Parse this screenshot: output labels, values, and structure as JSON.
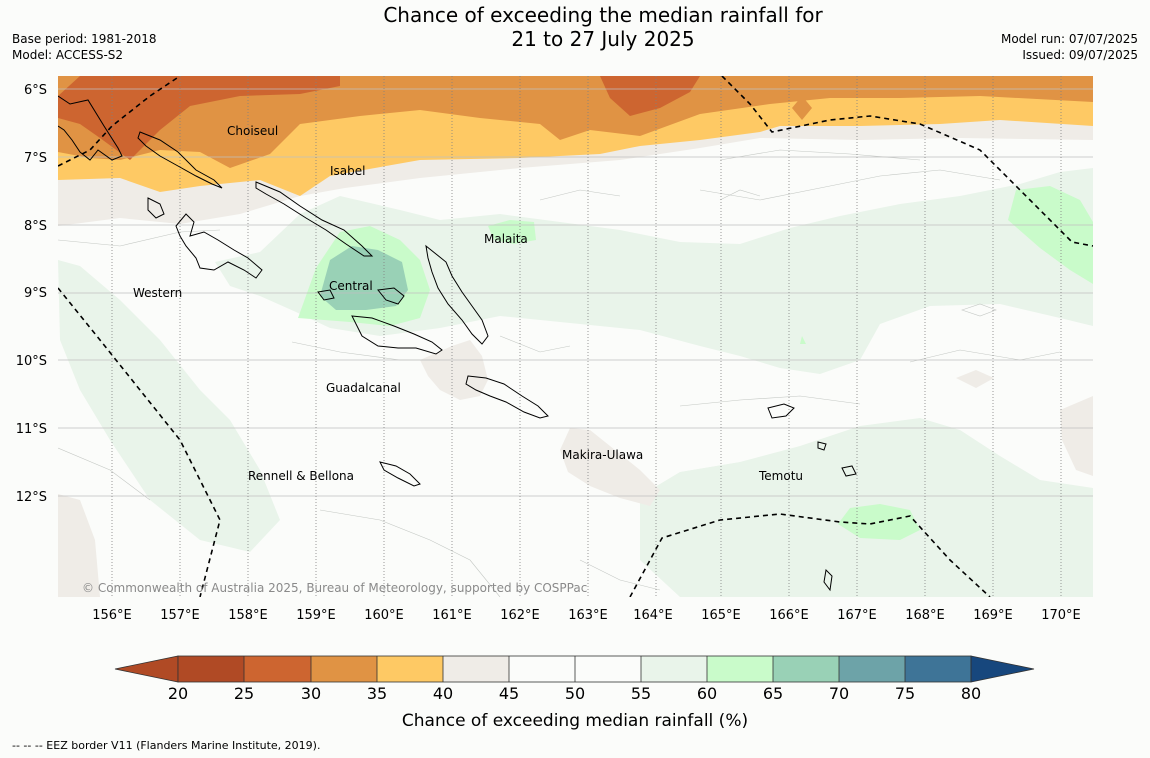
{
  "header": {
    "title_line1": "Chance of exceeding the median rainfall for",
    "title_line2": "21 to 27 July 2025",
    "base_period": "Base period: 1981-2018",
    "model": "Model: ACCESS-S2",
    "model_run": "Model run: 07/07/2025",
    "issued": "Issued: 09/07/2025"
  },
  "map": {
    "lat_labels": [
      "6°S",
      "7°S",
      "8°S",
      "9°S",
      "10°S",
      "11°S",
      "12°S"
    ],
    "lon_labels": [
      "156°E",
      "157°E",
      "158°E",
      "159°E",
      "160°E",
      "161°E",
      "162°E",
      "163°E",
      "164°E",
      "165°E",
      "166°E",
      "167°E",
      "168°E",
      "169°E",
      "170°E"
    ],
    "province_labels": [
      "Choiseul",
      "Isabel",
      "Malaita",
      "Western",
      "Central",
      "Guadalcanal",
      "Makira-Ulawa",
      "Rennell & Bellona",
      "Temotu"
    ],
    "copyright": "© Commonwealth of Australia 2025, Bureau of Meteorology, supported by COSPPac",
    "colors": {
      "c20_25": "#b04a25",
      "c25_30": "#cd6530",
      "c30_35": "#e09344",
      "c35_40": "#fec964",
      "c40_45": "#efece7",
      "c45_55": "#fbfcfa",
      "c55_60": "#e9f4ea",
      "c60_65": "#c9fbca",
      "c65_70": "#99d1b6",
      "c70_75": "#6da3a8",
      "c75_80": "#3e7497",
      "c80": "#17477d"
    }
  },
  "colorbar": {
    "ticks": [
      "20",
      "25",
      "30",
      "35",
      "40",
      "45",
      "50",
      "55",
      "60",
      "65",
      "70",
      "75",
      "80"
    ],
    "label": "Chance of exceeding median rainfall (%)"
  },
  "footer": {
    "eez_note": "--  --  -- EEZ border V11 (Flanders Marine Institute, 2019)."
  }
}
